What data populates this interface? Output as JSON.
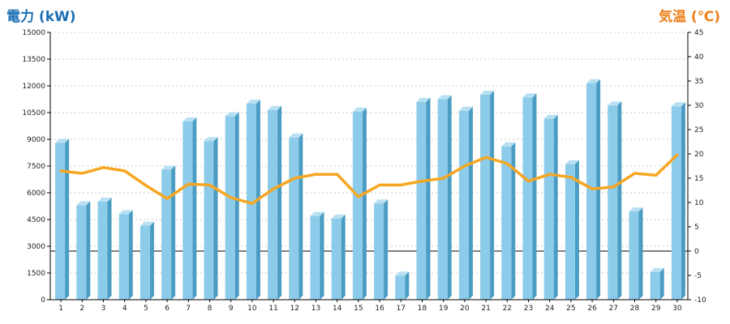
{
  "chart_data": {
    "type": "bar",
    "left_axis_title": "電力 (kW)",
    "right_axis_title": "気温 (℃)",
    "categories": [
      "1",
      "2",
      "3",
      "4",
      "5",
      "6",
      "7",
      "8",
      "9",
      "10",
      "11",
      "12",
      "13",
      "14",
      "15",
      "16",
      "17",
      "18",
      "19",
      "20",
      "21",
      "22",
      "23",
      "24",
      "25",
      "26",
      "27",
      "28",
      "29",
      "30"
    ],
    "left_ticks": [
      "0",
      "1500",
      "3000",
      "4500",
      "6000",
      "7500",
      "9000",
      "10500",
      "12000",
      "13500",
      "15000"
    ],
    "right_ticks": [
      "-10",
      "-5",
      "0",
      "5",
      "10",
      "15",
      "20",
      "25",
      "30",
      "35",
      "40",
      "45"
    ],
    "ylim_left": [
      0,
      15000
    ],
    "ylim_right": [
      -10,
      45
    ],
    "grid": "horizontal dotted",
    "series": [
      {
        "axis": "left",
        "type": "bar",
        "values": [
          8800,
          5300,
          5500,
          4800,
          4150,
          7300,
          10000,
          8900,
          10300,
          11000,
          10650,
          9100,
          4700,
          4550,
          10550,
          5400,
          1350,
          11100,
          11250,
          10600,
          11500,
          8600,
          11350,
          10150,
          7600,
          12150,
          10900,
          4950,
          1550,
          10850
        ]
      },
      {
        "axis": "right",
        "type": "line",
        "values": [
          16.5,
          16.0,
          17.2,
          16.5,
          13.5,
          10.8,
          13.8,
          13.6,
          11.0,
          9.8,
          12.8,
          15.0,
          15.8,
          15.8,
          11.2,
          13.6,
          13.6,
          14.4,
          15.0,
          17.5,
          19.3,
          18.0,
          14.4,
          15.8,
          15.2,
          12.8,
          13.2,
          16.0,
          15.6,
          19.8
        ]
      }
    ],
    "colors": {
      "bar_front": "#8ccbe9",
      "bar_side": "#4a9cc2",
      "bar_top": "#b8e0f2",
      "line": "#f6a622",
      "left_title": "#1c6fb3",
      "right_title": "#ef7f1a",
      "grid": "#c8c8c8",
      "axis": "#000000"
    }
  }
}
